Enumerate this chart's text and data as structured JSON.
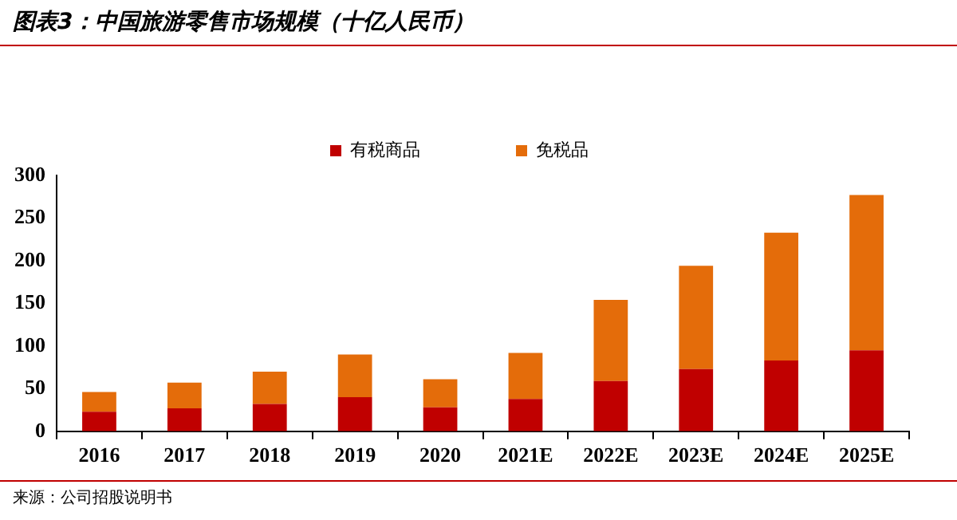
{
  "chart_data": {
    "type": "bar",
    "title": "图表3：中国旅游零售市场规模（十亿人民币）",
    "categories": [
      "2016",
      "2017",
      "2018",
      "2019",
      "2020",
      "2021E",
      "2022E",
      "2023E",
      "2024E",
      "2025E"
    ],
    "series": [
      {
        "name": "有税商品",
        "color": "#c00000",
        "values": [
          23,
          27,
          32,
          40,
          28,
          38,
          59,
          73,
          83,
          95
        ]
      },
      {
        "name": "免税品",
        "color": "#e46c0a",
        "values": [
          23,
          30,
          38,
          50,
          33,
          54,
          95,
          121,
          150,
          182
        ]
      }
    ],
    "stacked": true,
    "ylim": [
      0,
      300
    ],
    "yticks": [
      0,
      50,
      100,
      150,
      200,
      250,
      300
    ],
    "grid": false,
    "legend": "top",
    "annotations": [
      "来源：公司招股说明书"
    ]
  }
}
